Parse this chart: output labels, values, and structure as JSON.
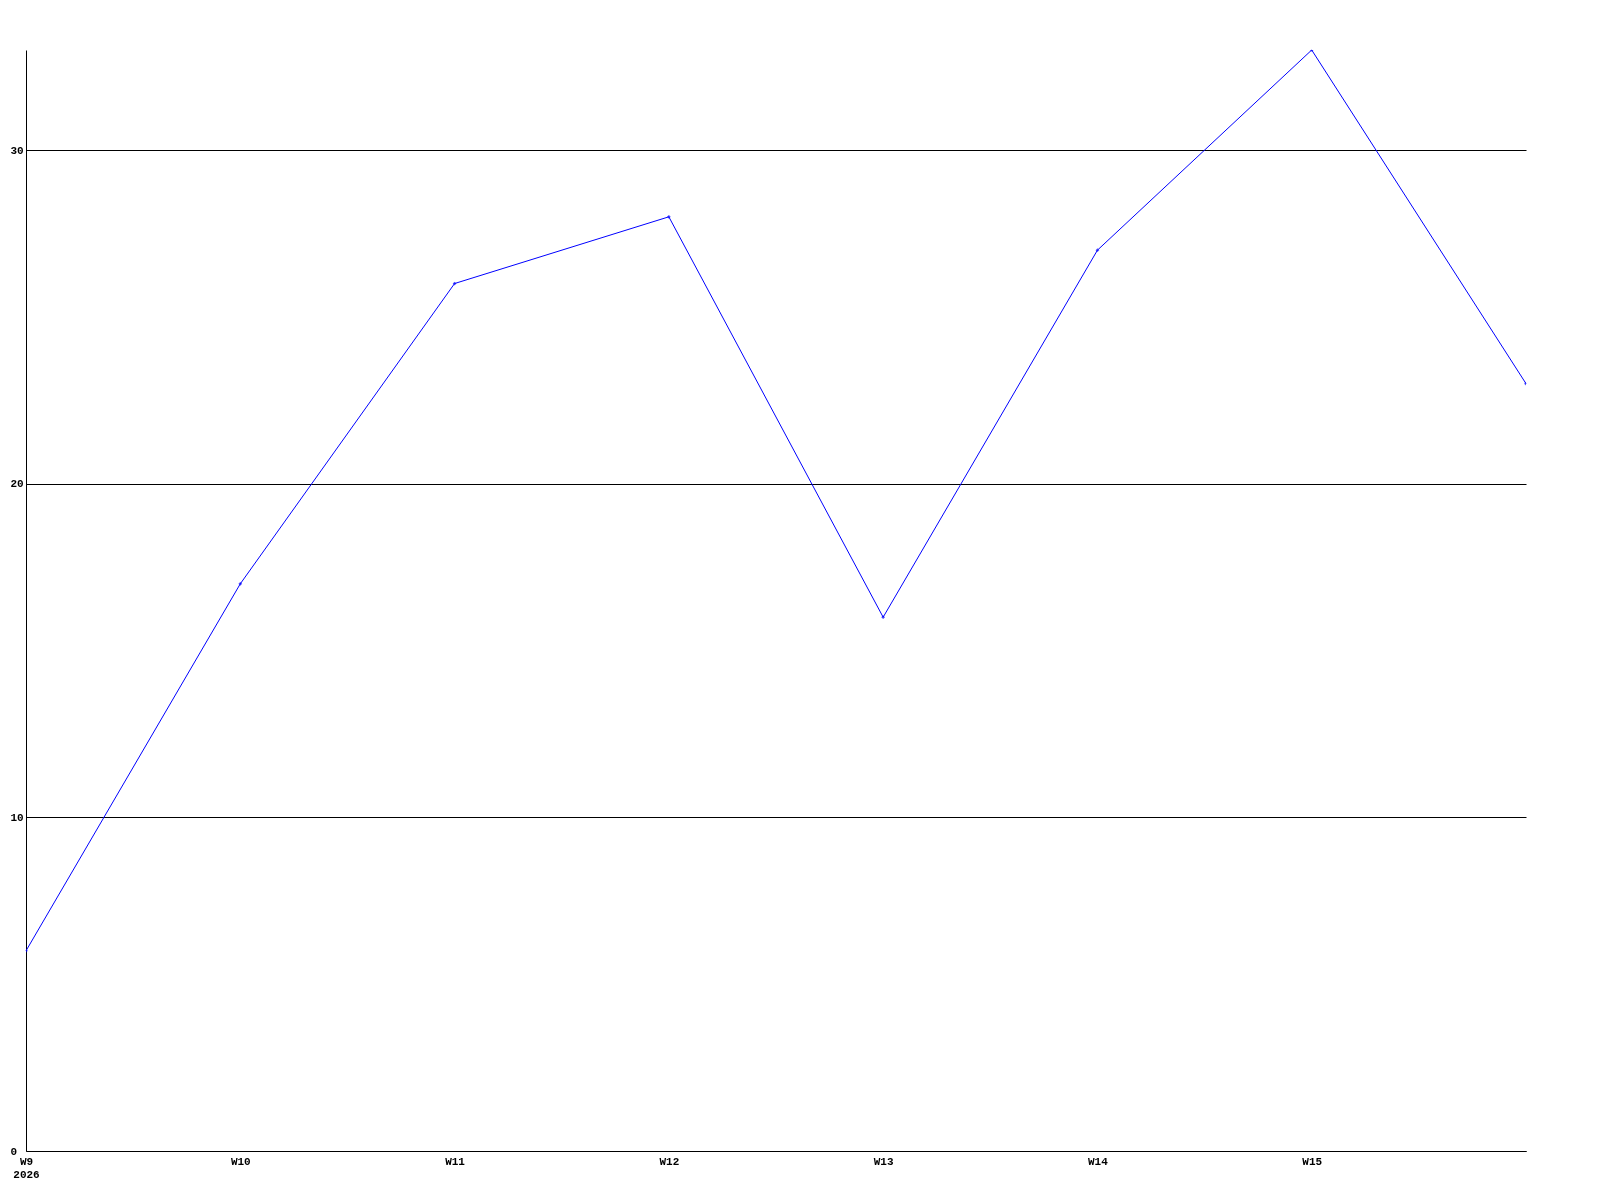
{
  "chart_data": {
    "type": "line",
    "categories": [
      "W9\n2026",
      "W10",
      "W11",
      "W12",
      "W13",
      "W14",
      "W15",
      null
    ],
    "series": [
      {
        "color": "#0000ff",
        "values": [
          6,
          17,
          26,
          28,
          16,
          27,
          33,
          23
        ]
      }
    ],
    "ylim": [
      0,
      33
    ],
    "yticks": [
      0,
      10,
      20,
      30
    ],
    "grid": "y",
    "marker": "diamond",
    "line_style": "solid",
    "legend": false
  }
}
